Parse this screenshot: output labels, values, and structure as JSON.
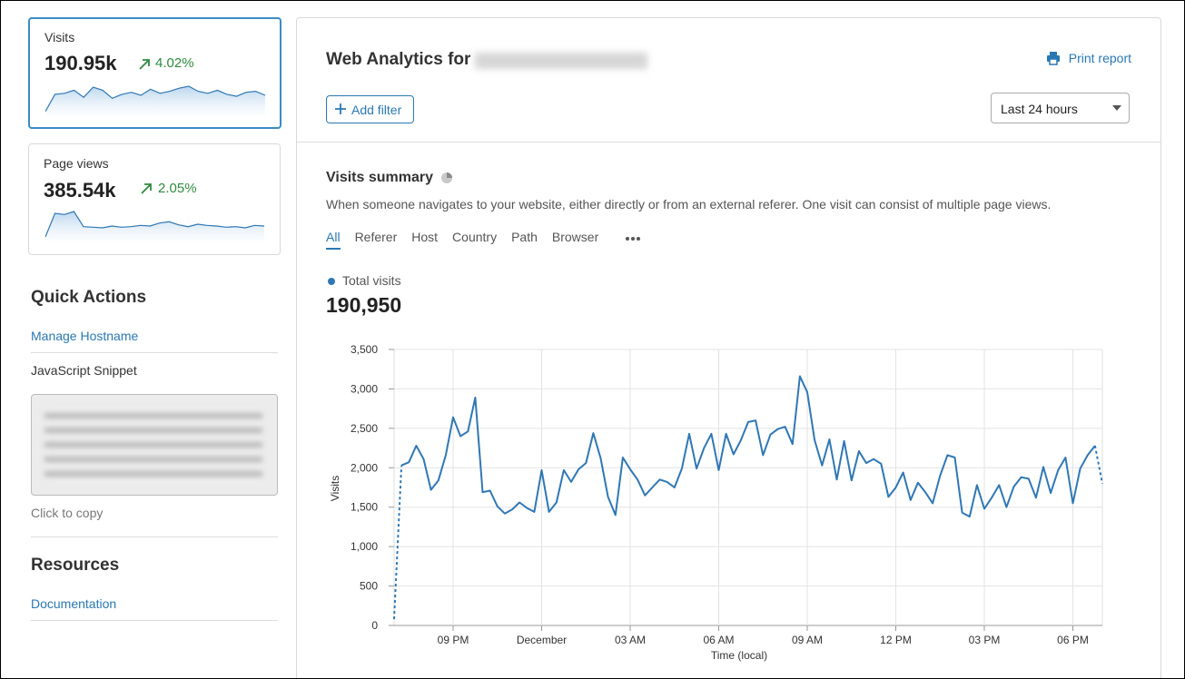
{
  "sidebar": {
    "cards": [
      {
        "label": "Visits",
        "value": "190.95k",
        "change": "4.02%",
        "sparkline": [
          200,
          1900,
          2000,
          2300,
          1600,
          2600,
          2300,
          1500,
          1900,
          2100,
          1800,
          2400,
          2000,
          2200,
          2500,
          2700,
          2200,
          2000,
          2300,
          1900,
          1700,
          2100,
          2200,
          1800
        ]
      },
      {
        "label": "Page views",
        "value": "385.54k",
        "change": "2.05%",
        "sparkline": [
          300,
          4200,
          4000,
          4500,
          2000,
          1900,
          1800,
          2100,
          1900,
          2000,
          2200,
          2100,
          2600,
          2800,
          2300,
          2000,
          2400,
          2200,
          2100,
          1900,
          2000,
          1800,
          2200,
          2100
        ]
      }
    ],
    "quick_actions": {
      "title": "Quick Actions",
      "link": "Manage Hostname",
      "snippet_label": "JavaScript Snippet",
      "copy_hint": "Click to copy"
    },
    "resources": {
      "title": "Resources",
      "link": "Documentation"
    }
  },
  "header": {
    "title": "Web Analytics for",
    "print": "Print report",
    "add_filter": "Add filter",
    "time_range": "Last 24 hours"
  },
  "summary": {
    "title": "Visits summary",
    "description": "When someone navigates to your website, either directly or from an external referer. One visit can consist of multiple page views.",
    "tabs": [
      "All",
      "Referer",
      "Host",
      "Country",
      "Path",
      "Browser"
    ],
    "total": "190,950"
  },
  "chart_data": {
    "type": "line",
    "x_label": "Time (local)",
    "y_label": "Visits",
    "categories": [
      null,
      null,
      null,
      null,
      null,
      null,
      null,
      null,
      "09 PM",
      null,
      null,
      null,
      null,
      null,
      null,
      null,
      null,
      null,
      null,
      null,
      "December",
      null,
      null,
      null,
      null,
      null,
      null,
      null,
      null,
      null,
      null,
      null,
      "03 AM",
      null,
      null,
      null,
      null,
      null,
      null,
      null,
      null,
      null,
      null,
      null,
      "06 AM",
      null,
      null,
      null,
      null,
      null,
      null,
      null,
      null,
      null,
      null,
      null,
      "09 AM",
      null,
      null,
      null,
      null,
      null,
      null,
      null,
      null,
      null,
      null,
      null,
      "12 PM",
      null,
      null,
      null,
      null,
      null,
      null,
      null,
      null,
      null,
      null,
      null,
      "03 PM",
      null,
      null,
      null,
      null,
      null,
      null,
      null,
      null,
      null,
      null,
      null,
      "06 PM",
      null,
      null,
      null,
      null
    ],
    "series": [
      {
        "name": "Total visits",
        "color": "#2f77b5",
        "values": [
          80,
          2030,
          2070,
          2280,
          2110,
          1720,
          1840,
          2160,
          2640,
          2400,
          2460,
          2890,
          1690,
          1710,
          1510,
          1420,
          1470,
          1560,
          1490,
          1440,
          1970,
          1440,
          1560,
          1970,
          1820,
          1980,
          2060,
          2440,
          2120,
          1630,
          1400,
          2130,
          1980,
          1850,
          1650,
          1750,
          1850,
          1820,
          1750,
          1990,
          2430,
          1990,
          2250,
          2430,
          1970,
          2430,
          2170,
          2350,
          2580,
          2600,
          2160,
          2420,
          2490,
          2520,
          2300,
          3160,
          2960,
          2350,
          2030,
          2360,
          1850,
          2340,
          1840,
          2210,
          2060,
          2110,
          2050,
          1630,
          1750,
          1940,
          1590,
          1810,
          1690,
          1550,
          1900,
          2160,
          2130,
          1430,
          1380,
          1780,
          1480,
          1620,
          1780,
          1500,
          1760,
          1880,
          1860,
          1620,
          2010,
          1680,
          1970,
          2130,
          1550,
          1990,
          2160,
          2280,
          1800
        ]
      }
    ],
    "ylim": [
      0,
      3500
    ],
    "yticks": [
      0,
      500,
      {
        "value": 1000,
        "label": "1,000"
      },
      {
        "value": 1500,
        "label": "1,500"
      },
      {
        "value": 2000,
        "label": "2,000"
      },
      {
        "value": 2500,
        "label": "2,500"
      },
      {
        "value": 3000,
        "label": "3,000"
      },
      {
        "value": 3500,
        "label": "3,500"
      }
    ],
    "grid": true
  }
}
